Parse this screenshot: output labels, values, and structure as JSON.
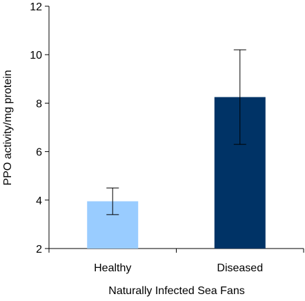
{
  "chart_data": {
    "type": "bar",
    "categories": [
      "Healthy",
      "Diseased"
    ],
    "values": [
      3.95,
      8.25
    ],
    "error_low": [
      3.4,
      6.3
    ],
    "error_high": [
      4.5,
      10.2
    ],
    "bar_colors": [
      "#99CCFF",
      "#003366"
    ],
    "title": "",
    "xlabel": "Naturally Infected Sea Fans",
    "ylabel": "PPO activity/mg protein",
    "ylim": [
      2,
      12
    ],
    "yticks": [
      2,
      4,
      6,
      8,
      10,
      12
    ],
    "grid": false,
    "legend": "none"
  }
}
